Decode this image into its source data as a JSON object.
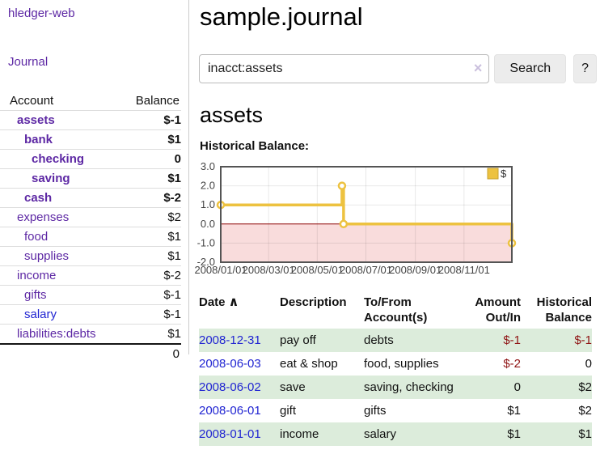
{
  "app": {
    "brand": "hledger-web",
    "nav_journal": "Journal"
  },
  "colors": {
    "link_purple": "#5d28a4",
    "link_blue": "#2125d2",
    "negative_strong": "#8f1414",
    "negative_dim": "#b26a6a",
    "row_stripe_green": "#dcecdb"
  },
  "sidebar": {
    "header": {
      "account": "Account",
      "balance": "Balance"
    },
    "accounts": [
      {
        "name": "assets",
        "balance": "$-1",
        "depth": 1,
        "bold": true,
        "neg": "strong",
        "link": "purple"
      },
      {
        "name": "bank",
        "balance": "$1",
        "depth": 2,
        "bold": true,
        "neg": "none",
        "link": "purple"
      },
      {
        "name": "checking",
        "balance": "0",
        "depth": 3,
        "bold": true,
        "neg": "none",
        "link": "purple"
      },
      {
        "name": "saving",
        "balance": "$1",
        "depth": 3,
        "bold": true,
        "neg": "none",
        "link": "purple"
      },
      {
        "name": "cash",
        "balance": "$-2",
        "depth": 2,
        "bold": true,
        "neg": "strong",
        "link": "purple"
      },
      {
        "name": "expenses",
        "balance": "$2",
        "depth": 1,
        "bold": false,
        "neg": "none",
        "link": "purple"
      },
      {
        "name": "food",
        "balance": "$1",
        "depth": 2,
        "bold": false,
        "neg": "none",
        "link": "purple"
      },
      {
        "name": "supplies",
        "balance": "$1",
        "depth": 2,
        "bold": false,
        "neg": "none",
        "link": "purple"
      },
      {
        "name": "income",
        "balance": "$-2",
        "depth": 1,
        "bold": false,
        "neg": "dim",
        "link": "purple"
      },
      {
        "name": "gifts",
        "balance": "$-1",
        "depth": 2,
        "bold": false,
        "neg": "dim",
        "link": "purple"
      },
      {
        "name": "salary",
        "balance": "$-1",
        "depth": 2,
        "bold": false,
        "neg": "dim",
        "link": "blue"
      },
      {
        "name": "liabilities:debts",
        "balance": "$1",
        "depth": 1,
        "bold": false,
        "neg": "none",
        "link": "purple"
      }
    ],
    "total": "0"
  },
  "header": {
    "title": "sample.journal"
  },
  "search": {
    "value": "inacct:assets",
    "clear_icon": "×",
    "button": "Search",
    "help_button": "?"
  },
  "account_page": {
    "heading": "assets",
    "chart_label": "Historical Balance:"
  },
  "chart_data": {
    "type": "line",
    "step": true,
    "title": "Historical Balance",
    "x_domain": [
      "2008-01-01",
      "2008-12-31"
    ],
    "ylim": [
      -2,
      3
    ],
    "yticks": [
      3,
      2,
      1,
      0,
      -1,
      -2
    ],
    "xticks": [
      {
        "date": "2008-01-01",
        "label": "2008/01/01"
      },
      {
        "date": "2008-03-01",
        "label": "2008/03/01"
      },
      {
        "date": "2008-05-01",
        "label": "2008/05/01"
      },
      {
        "date": "2008-07-01",
        "label": "2008/07/01"
      },
      {
        "date": "2008-09-01",
        "label": "2008/09/01"
      },
      {
        "date": "2008-11-01",
        "label": "2008/11/01"
      }
    ],
    "series": [
      {
        "name": "$",
        "color": "#edc240",
        "points": [
          [
            "2008-01-01",
            1
          ],
          [
            "2008-06-01",
            2
          ],
          [
            "2008-06-03",
            0
          ],
          [
            "2008-12-31",
            -1
          ]
        ]
      }
    ],
    "legend_position": "top-right",
    "grid": true,
    "negative_region_fill": "#f9dcdc",
    "zero_line_color": "#8b0000"
  },
  "register": {
    "sort_icon": "∧",
    "columns": [
      "Date",
      "Description",
      "To/From Account(s)",
      "Amount Out/In",
      "Historical Balance"
    ],
    "rows": [
      {
        "date": "2008-12-31",
        "description": "pay off",
        "accounts": "debts",
        "amount": "$-1",
        "amount_neg": true,
        "balance": "$-1",
        "balance_neg": true
      },
      {
        "date": "2008-06-03",
        "description": "eat & shop",
        "accounts": "food, supplies",
        "amount": "$-2",
        "amount_neg": true,
        "balance": "0",
        "balance_neg": false
      },
      {
        "date": "2008-06-02",
        "description": "save",
        "accounts": "saving, checking",
        "amount": "0",
        "amount_neg": false,
        "balance": "$2",
        "balance_neg": false
      },
      {
        "date": "2008-06-01",
        "description": "gift",
        "accounts": "gifts",
        "amount": "$1",
        "amount_neg": false,
        "balance": "$2",
        "balance_neg": false
      },
      {
        "date": "2008-01-01",
        "description": "income",
        "accounts": "salary",
        "amount": "$1",
        "amount_neg": false,
        "balance": "$1",
        "balance_neg": false
      }
    ]
  }
}
